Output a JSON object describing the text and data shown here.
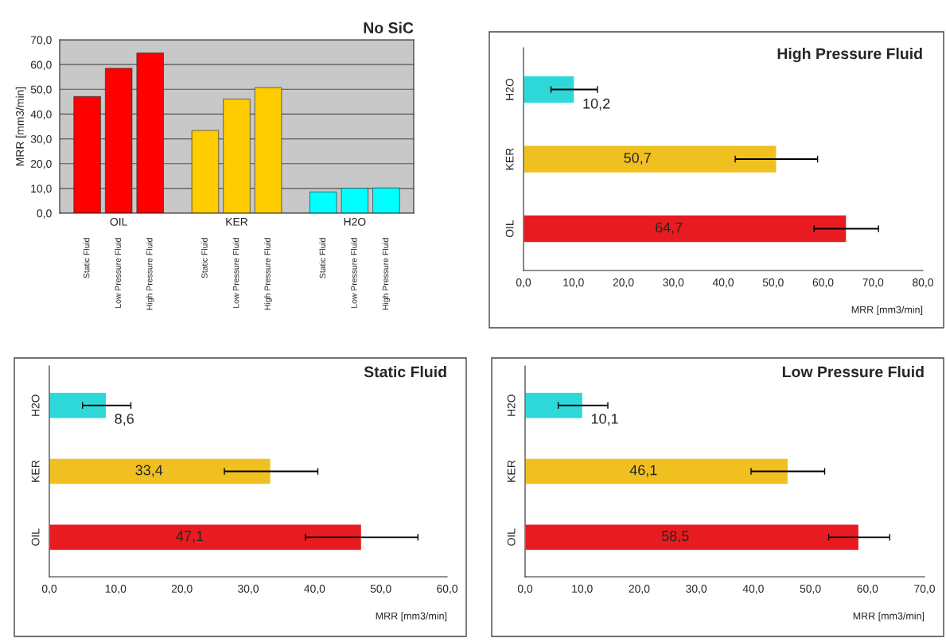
{
  "chart_data": [
    {
      "type": "bar",
      "title": "No SiC",
      "ylabel": "MRR [mm3/min]",
      "categories": [
        "OIL",
        "KER",
        "H2O"
      ],
      "grid": "y",
      "ylim": [
        0,
        70
      ],
      "yticks": [
        {
          "value": 0,
          "label": "0,0"
        },
        {
          "value": 10,
          "label": "10,0"
        },
        {
          "value": 20,
          "label": "20,0"
        },
        {
          "value": 30,
          "label": "30,0"
        },
        {
          "value": 40,
          "label": "40,0"
        },
        {
          "value": 50,
          "label": "50,0"
        },
        {
          "value": 60,
          "label": "60,0"
        },
        {
          "value": 70,
          "label": "70,0"
        }
      ],
      "series": [
        {
          "name": "Static Fluid",
          "colors": [
            "#ff0000",
            "#ffcc00",
            "#00ffff"
          ],
          "values": [
            47.1,
            33.4,
            8.6
          ]
        },
        {
          "name": "Low Pressure Fluid",
          "colors": [
            "#ff0000",
            "#ffcc00",
            "#00ffff"
          ],
          "values": [
            58.5,
            46.1,
            10.1
          ]
        },
        {
          "name": "High Pressure Fluid",
          "colors": [
            "#ff0000",
            "#ffcc00",
            "#00ffff"
          ],
          "values": [
            64.7,
            50.7,
            10.2
          ]
        }
      ]
    },
    {
      "type": "bar",
      "orientation": "horizontal",
      "title": "High Pressure Fluid",
      "xlabel": "MRR [mm3/min]",
      "categories": [
        "H2O",
        "KER",
        "OIL"
      ],
      "values": [
        10.2,
        50.7,
        64.7
      ],
      "colors": [
        "#2fd8d8",
        "#f0c020",
        "#e81c20"
      ],
      "errors": [
        [
          5.5,
          14.8
        ],
        [
          42.4,
          58.9
        ],
        [
          58.2,
          71.1
        ]
      ],
      "value_labels": [
        "10,2",
        "50,7",
        "64,7"
      ],
      "xlim": [
        0,
        80
      ],
      "xticks": [
        {
          "value": 0,
          "label": "0,0"
        },
        {
          "value": 10,
          "label": "10,0"
        },
        {
          "value": 20,
          "label": "20,0"
        },
        {
          "value": 30,
          "label": "30,0"
        },
        {
          "value": 40,
          "label": "40,0"
        },
        {
          "value": 50,
          "label": "50,0"
        },
        {
          "value": 60,
          "label": "60,0"
        },
        {
          "value": 70,
          "label": "70,0"
        },
        {
          "value": 80,
          "label": "80,0"
        }
      ]
    },
    {
      "type": "bar",
      "orientation": "horizontal",
      "title": "Static Fluid",
      "xlabel": "MRR [mm3/min]",
      "categories": [
        "H2O",
        "KER",
        "OIL"
      ],
      "values": [
        8.6,
        33.4,
        47.1
      ],
      "colors": [
        "#2fd8d8",
        "#f0c020",
        "#e81c20"
      ],
      "errors": [
        [
          5.0,
          12.3
        ],
        [
          26.4,
          40.5
        ],
        [
          38.6,
          55.6
        ]
      ],
      "value_labels": [
        "8,6",
        "33,4",
        "47,1"
      ],
      "xlim": [
        0,
        60
      ],
      "xticks": [
        {
          "value": 0,
          "label": "0,0"
        },
        {
          "value": 10,
          "label": "10,0"
        },
        {
          "value": 20,
          "label": "20,0"
        },
        {
          "value": 30,
          "label": "30,0"
        },
        {
          "value": 40,
          "label": "40,0"
        },
        {
          "value": 50,
          "label": "50,0"
        },
        {
          "value": 60,
          "label": "60,0"
        }
      ]
    },
    {
      "type": "bar",
      "orientation": "horizontal",
      "title": "Low Pressure Fluid",
      "xlabel": "MRR [mm3/min]",
      "categories": [
        "H2O",
        "KER",
        "OIL"
      ],
      "values": [
        10.1,
        46.1,
        58.5
      ],
      "colors": [
        "#2fd8d8",
        "#f0c020",
        "#e81c20"
      ],
      "errors": [
        [
          5.8,
          14.5
        ],
        [
          39.6,
          52.5
        ],
        [
          53.2,
          63.9
        ]
      ],
      "value_labels": [
        "10,1",
        "46,1",
        "58,5"
      ],
      "xlim": [
        0,
        70
      ],
      "xticks": [
        {
          "value": 0,
          "label": "0,0"
        },
        {
          "value": 10,
          "label": "10,0"
        },
        {
          "value": 20,
          "label": "20,0"
        },
        {
          "value": 30,
          "label": "30,0"
        },
        {
          "value": 40,
          "label": "40,0"
        },
        {
          "value": 50,
          "label": "50,0"
        },
        {
          "value": 60,
          "label": "60,0"
        },
        {
          "value": 70,
          "label": "70,0"
        }
      ]
    }
  ]
}
